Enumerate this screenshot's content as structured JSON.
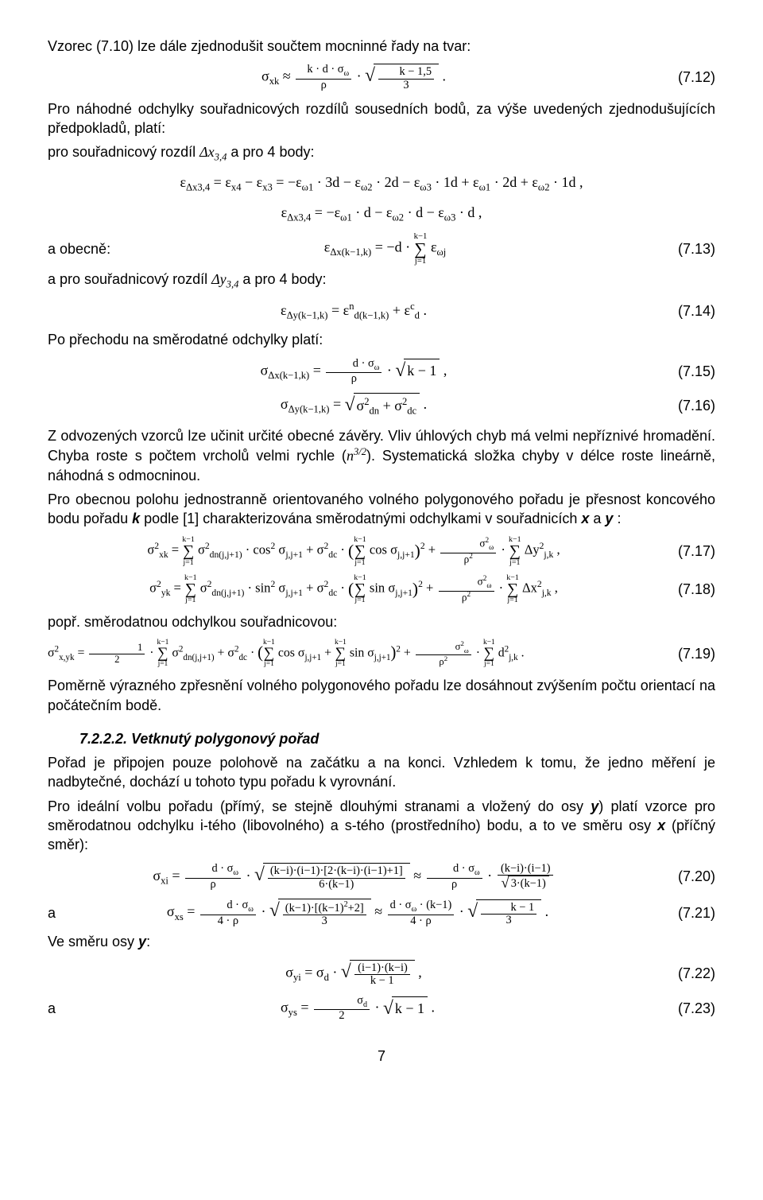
{
  "p1": "Vzorec (7.10) lze dále zjednodušit součtem mocninné řady na tvar:",
  "eq712_num": "(7.12)",
  "p2": "Pro náhodné odchylky souřadnicových rozdílů sousedních bodů, za výše uvedených zjednodušujících předpokladů, platí:",
  "p3_lead": "pro souřadnicový rozdíl ",
  "p3_mid": "Δx",
  "p3_sub": "3,4",
  "p3_tail": " a pro 4 body:",
  "lbl_obecne": "a obecně:",
  "eq713_num": "(7.13)",
  "p4_lead": "a pro souřadnicový rozdíl ",
  "p4_mid": "Δy",
  "p4_sub": "3,4",
  "p4_tail": " a pro 4 body:",
  "eq714_num": "(7.14)",
  "p5": "Po přechodu na směrodatné odchylky platí:",
  "eq715_num": "(7.15)",
  "eq716_num": "(7.16)",
  "p6a": "Z odvozených vzorců lze učinit určité obecné závěry. Vliv úhlových chyb má velmi nepříznivé hromadění. Chyba roste s počtem vrcholů velmi rychle (",
  "p6_exp": "n",
  "p6_expnum": "3/2",
  "p6b": "). Systematická složka chyby v délce roste lineárně, náhodná s odmocninou.",
  "p7a": "Pro obecnou polohu jednostranně orientovaného volného polygonového pořadu je přesnost koncového bodu pořadu ",
  "p7_k": "k",
  "p7b": " podle [1] charakterizována směrodatnými odchylkami v souřadnicích ",
  "p7_x": "x",
  "p7_and": " a ",
  "p7_y": "y",
  "p7c": " :",
  "eq717_num": "(7.17)",
  "eq718_num": "(7.18)",
  "p8": "popř. směrodatnou odchylkou souřadnicovou:",
  "eq719_num": "(7.19)",
  "p9": "Poměrně výrazného zpřesnění volného polygonového pořadu lze dosáhnout zvýšením počtu orientací na počátečním bodě.",
  "h3": "7.2.2.2. Vetknutý polygonový pořad",
  "p10": "Pořad je připojen pouze polohově na začátku a na konci. Vzhledem k tomu, že jedno měření je nadbytečné, dochází u tohoto typu pořadu k vyrovnání.",
  "p11a": "Pro ideální volbu pořadu (přímý, se stejně dlouhými stranami a vložený do osy ",
  "p11_y": "y",
  "p11b": ") platí vzorce pro směrodatnou odchylku i-tého (libovolného) a s-tého (prostředního) bodu, a to ve směru osy ",
  "p11_x": "x",
  "p11c": " (příčný směr):",
  "eq720_num": "(7.20)",
  "lbl_a1": "a",
  "eq721_num": "(7.21)",
  "p12_lead": "Ve směru osy ",
  "p12_y": "y",
  "p12_tail": ":",
  "eq722_num": "(7.22)",
  "lbl_a2": "a",
  "eq723_num": "(7.23)",
  "page": "7"
}
